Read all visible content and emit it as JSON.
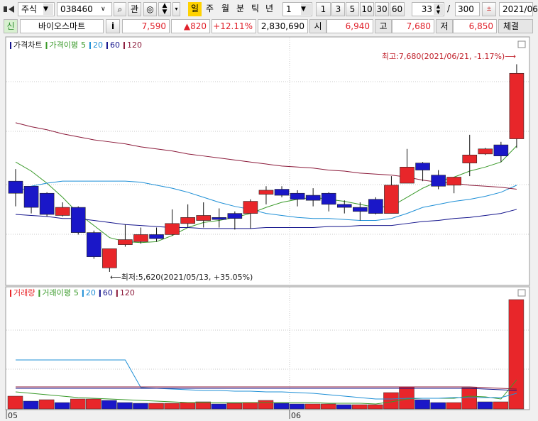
{
  "toolbar": {
    "market": "주식",
    "code": "038460",
    "watch": "관",
    "periods": [
      "일",
      "주",
      "월",
      "분",
      "틱",
      "년"
    ],
    "interval": "1",
    "quick_intervals": [
      "1",
      "3",
      "5",
      "10",
      "30",
      "60"
    ],
    "count": "33",
    "separator": "/",
    "max_count": "300",
    "date": "2021/06"
  },
  "quote": {
    "badge": "신",
    "name": "바이오스마트",
    "info": "i",
    "price": "7,590",
    "change": "▲820",
    "rate": "+12.11%",
    "volume": "2,830,690",
    "open_label": "시",
    "open": "6,940",
    "high_label": "고",
    "high": "7,680",
    "low_label": "저",
    "low": "6,850",
    "trade": "체결"
  },
  "chart_data": [
    {
      "type": "candlestick",
      "title": "가격차트",
      "ma_title": "가격이평",
      "ylim": [
        5500,
        7930
      ],
      "up_color": "#e8262a",
      "down_color": "#1a17c8",
      "open": [
        6520,
        6470,
        6400,
        6180,
        6260,
        6010,
        5660,
        5890,
        5920,
        5990,
        5990,
        6100,
        6130,
        6160,
        6200,
        6200,
        6390,
        6440,
        6400,
        6380,
        6400,
        6290,
        6260,
        6340,
        6200,
        6500,
        6700,
        6580,
        6480,
        6700,
        6790,
        6880,
        6940
      ],
      "high": [
        6640,
        6470,
        6410,
        6310,
        6270,
        6030,
        5850,
        6090,
        6060,
        6060,
        6240,
        6290,
        6310,
        6250,
        6220,
        6340,
        6470,
        6470,
        6430,
        6450,
        6410,
        6330,
        6310,
        6360,
        6570,
        6840,
        6710,
        6630,
        6560,
        6980,
        6850,
        6910,
        7680
      ],
      "low": [
        6270,
        6200,
        6170,
        6170,
        5990,
        5750,
        5620,
        5870,
        5900,
        5920,
        5980,
        6060,
        6060,
        6060,
        6040,
        6050,
        6290,
        6360,
        6270,
        6270,
        6220,
        6200,
        6130,
        6190,
        6200,
        6500,
        6520,
        6440,
        6400,
        6570,
        6780,
        6710,
        6850
      ],
      "close": [
        6400,
        6260,
        6190,
        6260,
        6010,
        5770,
        5850,
        5940,
        5990,
        5950,
        6100,
        6160,
        6180,
        6140,
        6150,
        6320,
        6430,
        6380,
        6340,
        6330,
        6290,
        6260,
        6220,
        6200,
        6480,
        6660,
        6630,
        6470,
        6560,
        6780,
        6840,
        6770,
        7590
      ],
      "series": [
        {
          "name": "5",
          "color": "#3a9a2a",
          "values": [
            6710,
            6620,
            6500,
            6360,
            6200,
            6080,
            5960,
            5920,
            5910,
            5920,
            5980,
            6060,
            6110,
            6130,
            6160,
            6200,
            6260,
            6310,
            6340,
            6360,
            6340,
            6320,
            6290,
            6260,
            6270,
            6360,
            6450,
            6520,
            6560,
            6620,
            6660,
            6710,
            6870
          ]
        },
        {
          "name": "20",
          "color": "#1e8fd6",
          "values": [
            6410,
            6470,
            6500,
            6520,
            6520,
            6520,
            6520,
            6520,
            6510,
            6480,
            6450,
            6410,
            6360,
            6310,
            6270,
            6240,
            6200,
            6180,
            6160,
            6150,
            6150,
            6140,
            6130,
            6130,
            6150,
            6200,
            6260,
            6290,
            6320,
            6340,
            6370,
            6410,
            6480
          ]
        },
        {
          "name": "60",
          "color": "#14148c",
          "values": [
            6190,
            6180,
            6170,
            6150,
            6150,
            6130,
            6110,
            6090,
            6080,
            6070,
            6060,
            6060,
            6050,
            6050,
            6050,
            6050,
            6060,
            6060,
            6060,
            6060,
            6070,
            6070,
            6080,
            6080,
            6080,
            6100,
            6120,
            6130,
            6150,
            6160,
            6180,
            6200,
            6240
          ]
        },
        {
          "name": "120",
          "color": "#8b1a3a",
          "values": [
            7100,
            7060,
            7030,
            6990,
            6960,
            6930,
            6910,
            6890,
            6860,
            6840,
            6820,
            6790,
            6770,
            6750,
            6730,
            6710,
            6690,
            6670,
            6660,
            6650,
            6630,
            6620,
            6600,
            6590,
            6580,
            6560,
            6530,
            6510,
            6500,
            6480,
            6470,
            6460,
            6440
          ]
        }
      ],
      "annotations": [
        "최고:7,680(2021/06/21, -1.17%)⟶",
        "⟵최저:5,620(2021/05/13, +35.05%)"
      ]
    },
    {
      "type": "bar",
      "title": "거래량",
      "ma_title": "거래이평",
      "ylim": [
        0,
        3106000
      ],
      "categories": [
        "05",
        null,
        null,
        null,
        null,
        null,
        null,
        null,
        null,
        null,
        null,
        null,
        null,
        null,
        null,
        null,
        null,
        null,
        "06",
        null,
        null,
        null,
        null,
        null,
        null,
        null,
        null,
        null,
        null,
        null,
        null,
        null,
        null
      ],
      "values": [
        331000,
        202000,
        239000,
        165000,
        257000,
        257000,
        221000,
        165000,
        147000,
        147000,
        147000,
        165000,
        184000,
        129000,
        147000,
        165000,
        221000,
        147000,
        129000,
        129000,
        129000,
        110000,
        110000,
        110000,
        423000,
        570000,
        239000,
        165000,
        165000,
        551000,
        184000,
        184000,
        2830690
      ],
      "colors": [
        "#e8262a",
        "#1a17c8",
        "#e8262a",
        "#1a17c8",
        "#e8262a",
        "#e8262a",
        "#1a17c8",
        "#1a17c8",
        "#1a17c8",
        "#e8262a",
        "#e8262a",
        "#e8262a",
        "#e8262a",
        "#1a17c8",
        "#e8262a",
        "#e8262a",
        "#e8262a",
        "#1a17c8",
        "#1a17c8",
        "#e8262a",
        "#e8262a",
        "#1a17c8",
        "#e8262a",
        "#e8262a",
        "#e8262a",
        "#e8262a",
        "#1a17c8",
        "#1a17c8",
        "#e8262a",
        "#e8262a",
        "#1a17c8",
        "#e8262a",
        "#e8262a"
      ],
      "series": [
        {
          "name": "5",
          "color": "#3a9a2a",
          "values": [
            441000,
            404000,
            368000,
            331000,
            294000,
            276000,
            257000,
            239000,
            221000,
            202000,
            184000,
            165000,
            165000,
            165000,
            165000,
            165000,
            165000,
            165000,
            165000,
            165000,
            147000,
            147000,
            147000,
            129000,
            184000,
            257000,
            276000,
            276000,
            276000,
            331000,
            312000,
            257000,
            754000
          ]
        },
        {
          "name": "20",
          "color": "#1e8fd6",
          "values": [
            1268000,
            1268000,
            1268000,
            1268000,
            1268000,
            1268000,
            1268000,
            1268000,
            551000,
            533000,
            515000,
            496000,
            478000,
            478000,
            460000,
            460000,
            441000,
            441000,
            423000,
            404000,
            368000,
            331000,
            294000,
            257000,
            257000,
            276000,
            276000,
            276000,
            294000,
            294000,
            294000,
            294000,
            404000
          ]
        },
        {
          "name": "60",
          "color": "#14148c",
          "values": [
            533000,
            533000,
            533000,
            533000,
            533000,
            533000,
            533000,
            533000,
            533000,
            533000,
            533000,
            533000,
            533000,
            533000,
            533000,
            533000,
            533000,
            533000,
            533000,
            533000,
            533000,
            533000,
            533000,
            533000,
            533000,
            533000,
            533000,
            533000,
            533000,
            533000,
            515000,
            496000,
            478000
          ]
        },
        {
          "name": "120",
          "color": "#8b1a3a",
          "values": [
            570000,
            570000,
            570000,
            570000,
            570000,
            570000,
            570000,
            570000,
            570000,
            570000,
            570000,
            570000,
            570000,
            570000,
            570000,
            570000,
            570000,
            570000,
            570000,
            570000,
            570000,
            570000,
            570000,
            570000,
            570000,
            570000,
            570000,
            570000,
            570000,
            570000,
            551000,
            533000,
            515000
          ]
        }
      ]
    }
  ]
}
